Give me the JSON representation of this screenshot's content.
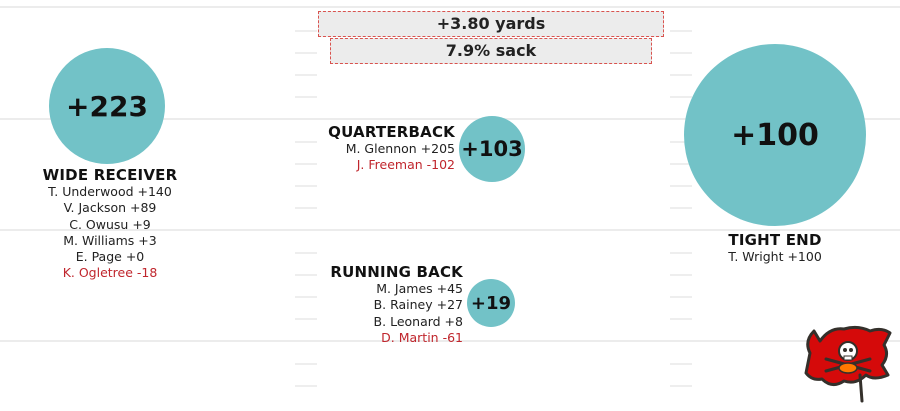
{
  "summary": {
    "yards": "+3.80 yards",
    "sack": "7.9% sack"
  },
  "positions": {
    "wide_receiver": {
      "total": "+223",
      "title": "WIDE RECEIVER",
      "players": [
        {
          "name": "T. Underwood +140",
          "negative": false
        },
        {
          "name": "V. Jackson +89",
          "negative": false
        },
        {
          "name": "C. Owusu +9",
          "negative": false
        },
        {
          "name": "M. Williams +3",
          "negative": false
        },
        {
          "name": "E. Page +0",
          "negative": false
        },
        {
          "name": "K. Ogletree -18",
          "negative": true
        }
      ]
    },
    "quarterback": {
      "total": "+103",
      "title": "QUARTERBACK",
      "players": [
        {
          "name": "M. Glennon +205",
          "negative": false
        },
        {
          "name": "J. Freeman -102",
          "negative": true
        }
      ]
    },
    "running_back": {
      "total": "+19",
      "title": "RUNNING BACK",
      "players": [
        {
          "name": "M. James +45",
          "negative": false
        },
        {
          "name": "B. Rainey +27",
          "negative": false
        },
        {
          "name": "B. Leonard +8",
          "negative": false
        },
        {
          "name": "D. Martin -61",
          "negative": true
        }
      ]
    },
    "tight_end": {
      "total": "+100",
      "title": "TIGHT END",
      "players": [
        {
          "name": "T. Wright +100",
          "negative": false
        }
      ]
    }
  },
  "colors": {
    "bubble": "#72c2c7",
    "negative_text": "#c0262d",
    "logo_red": "#d50a0a",
    "logo_pewter": "#34302b"
  },
  "icons": {
    "team_logo": "buccaneers-flag-icon"
  }
}
